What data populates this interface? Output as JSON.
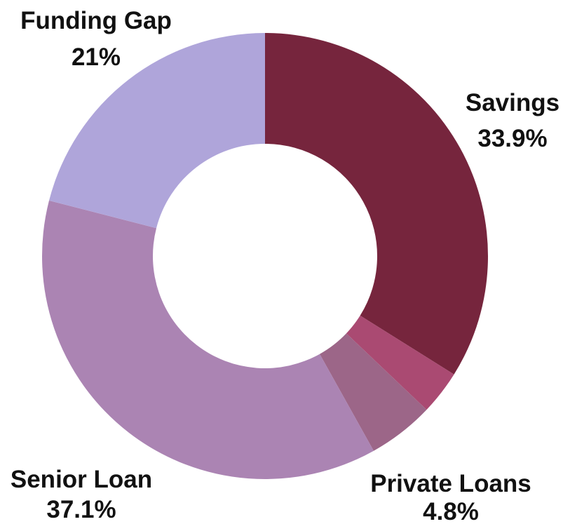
{
  "chart_data": {
    "type": "pie",
    "variant": "donut",
    "slices": [
      {
        "label": "Savings",
        "value_label": "33.9%",
        "value": 33.9,
        "color": "#76253D"
      },
      {
        "label": "",
        "value_label": "",
        "value": 3.2,
        "color": "#AA4A72"
      },
      {
        "label": "Private Loans",
        "value_label": "4.8%",
        "value": 4.8,
        "color": "#9C6688"
      },
      {
        "label": "Senior Loan",
        "value_label": "37.1%",
        "value": 37.1,
        "color": "#AB84B3"
      },
      {
        "label": "Funding Gap",
        "value_label": "21%",
        "value": 21.0,
        "color": "#AFA5DA"
      }
    ],
    "legend": "none",
    "start_angle": "12 o'clock",
    "direction": "clockwise"
  }
}
